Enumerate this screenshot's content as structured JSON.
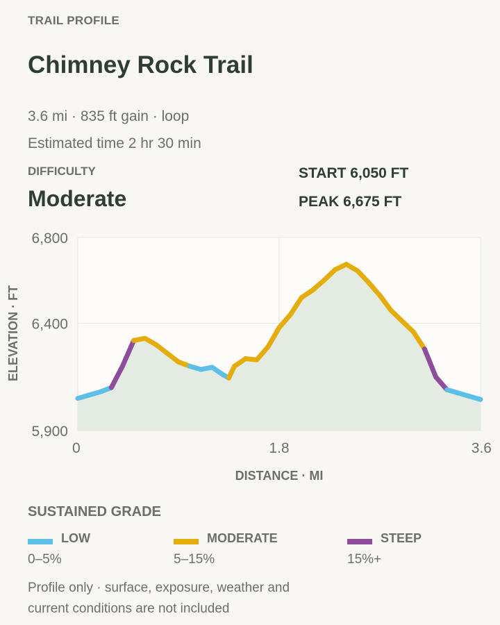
{
  "header": {
    "eyebrow": "TRAIL PROFILE",
    "title": "Chimney Rock Trail",
    "meta_line1": "3.6 mi · 835 ft gain · loop",
    "meta_line2": "Estimated time 2 hr 30 min"
  },
  "difficulty": {
    "label": "DIFFICULTY",
    "value": "Moderate"
  },
  "stats": {
    "start": "START 6,050 FT",
    "peak": "PEAK 6,675 FT"
  },
  "chart_data": {
    "type": "area",
    "xlabel": "DISTANCE · MI",
    "ylabel": "ELEVATION · FT",
    "xlim": [
      0,
      3.6
    ],
    "ylim": [
      5900,
      6800
    ],
    "x_ticks": [
      0,
      1.8,
      3.6
    ],
    "x_tick_labels": [
      "0",
      "1.8",
      "3.6"
    ],
    "y_ticks": [
      5900,
      6400,
      6800
    ],
    "y_tick_labels": [
      "5,900",
      "6,400",
      "6,800"
    ],
    "grid": true,
    "x": [
      0,
      0.1,
      0.2,
      0.3,
      0.4,
      0.5,
      0.6,
      0.7,
      0.8,
      0.9,
      1.0,
      1.1,
      1.2,
      1.3,
      1.35,
      1.4,
      1.5,
      1.6,
      1.7,
      1.8,
      1.9,
      2.0,
      2.1,
      2.2,
      2.3,
      2.4,
      2.5,
      2.6,
      2.7,
      2.8,
      2.9,
      3.0,
      3.1,
      3.2,
      3.3,
      3.4,
      3.5,
      3.6
    ],
    "y": [
      6050,
      6065,
      6080,
      6100,
      6200,
      6320,
      6330,
      6300,
      6260,
      6220,
      6200,
      6185,
      6195,
      6160,
      6145,
      6200,
      6235,
      6230,
      6290,
      6380,
      6440,
      6520,
      6555,
      6600,
      6650,
      6675,
      6645,
      6590,
      6530,
      6460,
      6410,
      6360,
      6280,
      6150,
      6090,
      6075,
      6060,
      6045
    ],
    "segment_grades": [
      "low",
      "low",
      "low",
      "steep",
      "steep",
      "moderate",
      "moderate",
      "moderate",
      "moderate",
      "moderate",
      "low",
      "low",
      "low",
      "low",
      "moderate",
      "moderate",
      "moderate",
      "moderate",
      "moderate",
      "moderate",
      "moderate",
      "moderate",
      "moderate",
      "moderate",
      "moderate",
      "moderate",
      "moderate",
      "moderate",
      "moderate",
      "moderate",
      "moderate",
      "moderate",
      "steep",
      "steep",
      "low",
      "low",
      "low"
    ],
    "colors": {
      "low": "#5bbfe8",
      "moderate": "#e4ad0c",
      "steep": "#8e4c9c",
      "area_fill": "#e3ebe3",
      "plot_bg": "#fdfcfa",
      "grid": "#e6e6e2"
    }
  },
  "legend": {
    "title": "SUSTAINED GRADE",
    "items": [
      {
        "key": "low",
        "name": "LOW",
        "range": "0–5%",
        "color": "#5bbfe8"
      },
      {
        "key": "moderate",
        "name": "MODERATE",
        "range": "5–15%",
        "color": "#e4ad0c"
      },
      {
        "key": "steep",
        "name": "STEEP",
        "range": "15%+",
        "color": "#8e4c9c"
      }
    ]
  },
  "footnote": "Profile only · surface, exposure, weather and current conditions are not included"
}
